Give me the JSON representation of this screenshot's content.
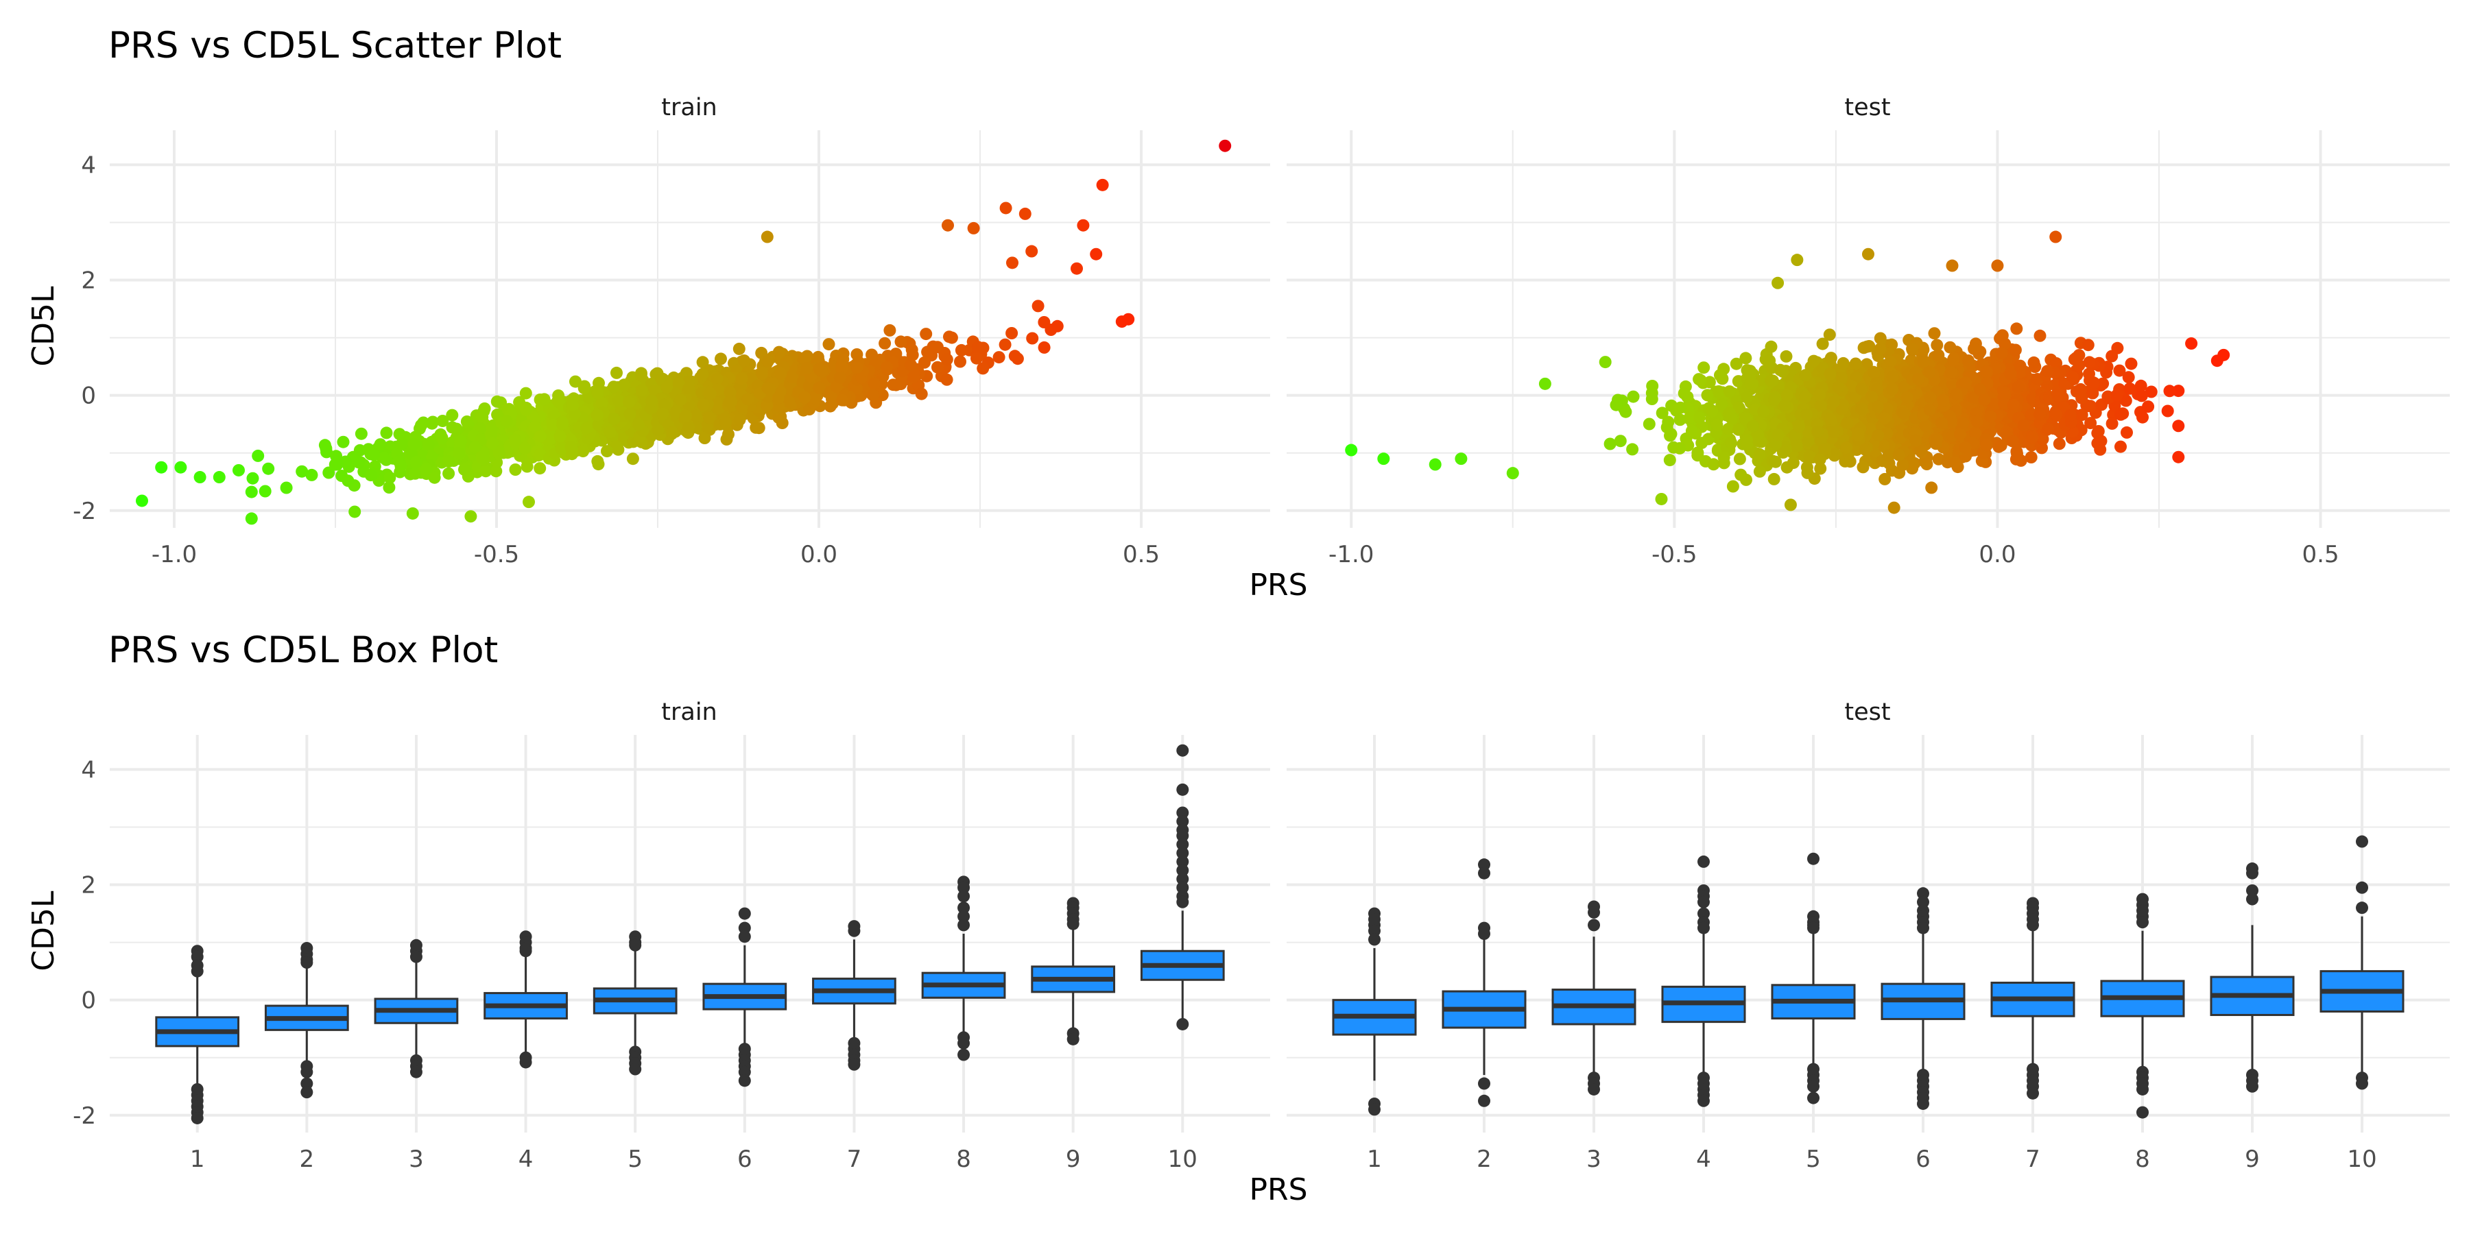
{
  "scatter_plot": {
    "title": "PRS vs CD5L Scatter Plot",
    "xlabel": "PRS",
    "ylabel": "CD5L",
    "color_low": "#33ff00",
    "color_mid": "#a0d000",
    "color_high": "#ff2200",
    "point_color_max": "#e8000b",
    "grid_color": "#ebebeb"
  },
  "box_plot": {
    "title": "PRS vs CD5L Box Plot",
    "xlabel": "PRS",
    "ylabel": "CD5L",
    "box_fill": "#1e90ff",
    "box_stroke": "#333333"
  },
  "chart_data": [
    {
      "type": "scatter",
      "title": "PRS vs CD5L Scatter Plot",
      "xlabel": "PRS",
      "ylabel": "CD5L",
      "xlim": [
        -1.1,
        0.7
      ],
      "ylim": [
        -2.3,
        4.6
      ],
      "xticks": [
        -1.0,
        -0.5,
        0.0,
        0.5
      ],
      "xtick_labels": [
        "-1.0",
        "-0.5",
        "0.0",
        "0.5"
      ],
      "yticks": [
        -2,
        0,
        2,
        4
      ],
      "ytick_labels": [
        "-2",
        "0",
        "2",
        "4"
      ],
      "grid": true,
      "color_scale": "green-to-red by CD5L/PRS value",
      "panels": [
        {
          "name": "train",
          "outliers": [
            {
              "x": -1.05,
              "y": -1.83
            },
            {
              "x": -1.02,
              "y": -1.25
            },
            {
              "x": -0.99,
              "y": -1.25
            },
            {
              "x": -0.96,
              "y": -1.42
            },
            {
              "x": -0.93,
              "y": -1.42
            },
            {
              "x": -0.9,
              "y": -1.3
            },
            {
              "x": -0.87,
              "y": -1.05
            },
            {
              "x": -0.72,
              "y": -2.02
            },
            {
              "x": -0.63,
              "y": -2.05
            },
            {
              "x": -0.54,
              "y": -2.1
            },
            {
              "x": -0.45,
              "y": -1.85
            },
            {
              "x": -0.08,
              "y": 2.75
            },
            {
              "x": 0.2,
              "y": 2.95
            },
            {
              "x": 0.24,
              "y": 2.9
            },
            {
              "x": 0.29,
              "y": 3.25
            },
            {
              "x": 0.32,
              "y": 3.15
            },
            {
              "x": 0.3,
              "y": 2.3
            },
            {
              "x": 0.33,
              "y": 2.5
            },
            {
              "x": 0.41,
              "y": 2.95
            },
            {
              "x": 0.44,
              "y": 3.65
            },
            {
              "x": 0.4,
              "y": 2.2
            },
            {
              "x": 0.43,
              "y": 2.45
            },
            {
              "x": 0.47,
              "y": 1.28
            },
            {
              "x": 0.48,
              "y": 1.32
            },
            {
              "x": 0.63,
              "y": 4.33
            },
            {
              "x": 0.37,
              "y": 1.2
            },
            {
              "x": 0.34,
              "y": 1.55
            }
          ]
        },
        {
          "name": "test",
          "outliers": [
            {
              "x": -1.0,
              "y": -0.95
            },
            {
              "x": -0.95,
              "y": -1.1
            },
            {
              "x": -0.87,
              "y": -1.2
            },
            {
              "x": -0.83,
              "y": -1.1
            },
            {
              "x": -0.75,
              "y": -1.35
            },
            {
              "x": -0.7,
              "y": 0.2
            },
            {
              "x": -0.52,
              "y": -1.8
            },
            {
              "x": -0.32,
              "y": -1.9
            },
            {
              "x": -0.16,
              "y": -1.95
            },
            {
              "x": -0.31,
              "y": 2.35
            },
            {
              "x": -0.34,
              "y": 1.95
            },
            {
              "x": -0.2,
              "y": 2.45
            },
            {
              "x": -0.07,
              "y": 2.25
            },
            {
              "x": 0.0,
              "y": 2.25
            },
            {
              "x": 0.09,
              "y": 2.75
            },
            {
              "x": 0.3,
              "y": 0.9
            },
            {
              "x": 0.34,
              "y": 0.6
            },
            {
              "x": 0.35,
              "y": 0.7
            }
          ]
        }
      ]
    },
    {
      "type": "box",
      "title": "PRS vs CD5L Box Plot",
      "xlabel": "PRS",
      "ylabel": "CD5L",
      "categories": [
        "1",
        "2",
        "3",
        "4",
        "5",
        "6",
        "7",
        "8",
        "9",
        "10"
      ],
      "ylim": [
        -2.3,
        4.6
      ],
      "yticks": [
        -2,
        0,
        2,
        4
      ],
      "ytick_labels": [
        "-2",
        "0",
        "2",
        "4"
      ],
      "grid": true,
      "panels": [
        {
          "name": "train",
          "boxes": [
            {
              "category": "1",
              "q1": -0.8,
              "median": -0.55,
              "q3": -0.3,
              "whisker_low": -1.5,
              "whisker_high": 0.4,
              "outliers": [
                0.85,
                0.75,
                0.6,
                0.5,
                -1.55,
                -1.65,
                -1.75,
                -1.85,
                -1.95,
                -2.05
              ]
            },
            {
              "category": "2",
              "q1": -0.52,
              "median": -0.32,
              "q3": -0.1,
              "whisker_low": -1.1,
              "whisker_high": 0.55,
              "outliers": [
                0.9,
                0.8,
                0.7,
                0.65,
                -1.15,
                -1.25,
                -1.45,
                -1.6
              ]
            },
            {
              "category": "3",
              "q1": -0.4,
              "median": -0.18,
              "q3": 0.02,
              "whisker_low": -1.0,
              "whisker_high": 0.65,
              "outliers": [
                0.95,
                0.85,
                0.75,
                -1.05,
                -1.15,
                -1.25
              ]
            },
            {
              "category": "4",
              "q1": -0.32,
              "median": -0.1,
              "q3": 0.12,
              "whisker_low": -0.98,
              "whisker_high": 0.78,
              "outliers": [
                1.1,
                1.0,
                0.9,
                0.85,
                -1.0,
                -1.08
              ]
            },
            {
              "category": "5",
              "q1": -0.23,
              "median": 0.0,
              "q3": 0.2,
              "whisker_low": -0.85,
              "whisker_high": 0.85,
              "outliers": [
                1.1,
                1.0,
                0.95,
                -0.9,
                -1.0,
                -1.1,
                -1.2
              ]
            },
            {
              "category": "6",
              "q1": -0.16,
              "median": 0.06,
              "q3": 0.28,
              "whisker_low": -0.8,
              "whisker_high": 0.95,
              "outliers": [
                1.5,
                1.25,
                1.1,
                -0.85,
                -0.95,
                -1.05,
                -1.15,
                -1.25,
                -1.4
              ]
            },
            {
              "category": "7",
              "q1": -0.06,
              "median": 0.16,
              "q3": 0.37,
              "whisker_low": -0.7,
              "whisker_high": 1.05,
              "outliers": [
                1.28,
                1.2,
                -0.75,
                -0.85,
                -0.95,
                -1.05,
                -1.12
              ]
            },
            {
              "category": "8",
              "q1": 0.04,
              "median": 0.26,
              "q3": 0.47,
              "whisker_low": -0.6,
              "whisker_high": 1.15,
              "outliers": [
                2.05,
                1.95,
                1.8,
                1.6,
                1.45,
                1.3,
                -0.65,
                -0.75,
                -0.95
              ]
            },
            {
              "category": "9",
              "q1": 0.14,
              "median": 0.36,
              "q3": 0.58,
              "whisker_low": -0.5,
              "whisker_high": 1.25,
              "outliers": [
                1.68,
                1.6,
                1.5,
                1.4,
                1.32,
                -0.58,
                -0.68
              ]
            },
            {
              "category": "10",
              "q1": 0.35,
              "median": 0.6,
              "q3": 0.85,
              "whisker_low": -0.35,
              "whisker_high": 1.55,
              "outliers": [
                4.33,
                3.65,
                3.25,
                3.1,
                2.95,
                2.85,
                2.7,
                2.55,
                2.4,
                2.25,
                2.1,
                1.95,
                1.8,
                1.7,
                -0.42
              ]
            }
          ]
        },
        {
          "name": "test",
          "boxes": [
            {
              "category": "1",
              "q1": -0.6,
              "median": -0.28,
              "q3": 0.0,
              "whisker_low": -1.4,
              "whisker_high": 0.9,
              "outliers": [
                1.5,
                1.4,
                1.3,
                1.2,
                1.05,
                -1.8,
                -1.9
              ]
            },
            {
              "category": "2",
              "q1": -0.48,
              "median": -0.16,
              "q3": 0.15,
              "whisker_low": -1.3,
              "whisker_high": 1.05,
              "outliers": [
                2.35,
                2.2,
                1.25,
                1.15,
                -1.45,
                -1.75
              ]
            },
            {
              "category": "3",
              "q1": -0.42,
              "median": -0.1,
              "q3": 0.18,
              "whisker_low": -1.3,
              "whisker_high": 1.1,
              "outliers": [
                1.62,
                1.52,
                1.3,
                -1.35,
                -1.45,
                -1.55
              ]
            },
            {
              "category": "4",
              "q1": -0.38,
              "median": -0.05,
              "q3": 0.23,
              "whisker_low": -1.3,
              "whisker_high": 1.15,
              "outliers": [
                2.4,
                1.9,
                1.8,
                1.7,
                1.5,
                1.35,
                1.25,
                -1.35,
                -1.45,
                -1.55,
                -1.65,
                -1.75
              ]
            },
            {
              "category": "5",
              "q1": -0.32,
              "median": -0.02,
              "q3": 0.26,
              "whisker_low": -1.2,
              "whisker_high": 1.15,
              "outliers": [
                2.45,
                1.45,
                1.35,
                1.3,
                1.25,
                -1.2,
                -1.3,
                -1.4,
                -1.5,
                -1.7
              ]
            },
            {
              "category": "6",
              "q1": -0.33,
              "median": 0.0,
              "q3": 0.28,
              "whisker_low": -1.25,
              "whisker_high": 1.15,
              "outliers": [
                1.85,
                1.7,
                1.55,
                1.45,
                1.35,
                1.25,
                -1.3,
                -1.4,
                -1.5,
                -1.6,
                -1.7,
                -1.8
              ]
            },
            {
              "category": "7",
              "q1": -0.28,
              "median": 0.02,
              "q3": 0.3,
              "whisker_low": -1.15,
              "whisker_high": 1.2,
              "outliers": [
                1.68,
                1.6,
                1.5,
                1.4,
                1.3,
                -1.2,
                -1.3,
                -1.4,
                -1.5,
                -1.62
              ]
            },
            {
              "category": "8",
              "q1": -0.28,
              "median": 0.04,
              "q3": 0.33,
              "whisker_low": -1.2,
              "whisker_high": 1.2,
              "outliers": [
                1.75,
                1.65,
                1.55,
                1.45,
                1.35,
                -1.25,
                -1.35,
                -1.45,
                -1.55,
                -1.95
              ]
            },
            {
              "category": "9",
              "q1": -0.26,
              "median": 0.08,
              "q3": 0.4,
              "whisker_low": -1.2,
              "whisker_high": 1.3,
              "outliers": [
                2.28,
                2.2,
                1.9,
                1.75,
                -1.3,
                -1.4,
                -1.5
              ]
            },
            {
              "category": "10",
              "q1": -0.2,
              "median": 0.15,
              "q3": 0.5,
              "whisker_low": -1.25,
              "whisker_high": 1.45,
              "outliers": [
                2.75,
                1.95,
                1.6,
                -1.35,
                -1.45
              ]
            }
          ]
        }
      ]
    }
  ]
}
